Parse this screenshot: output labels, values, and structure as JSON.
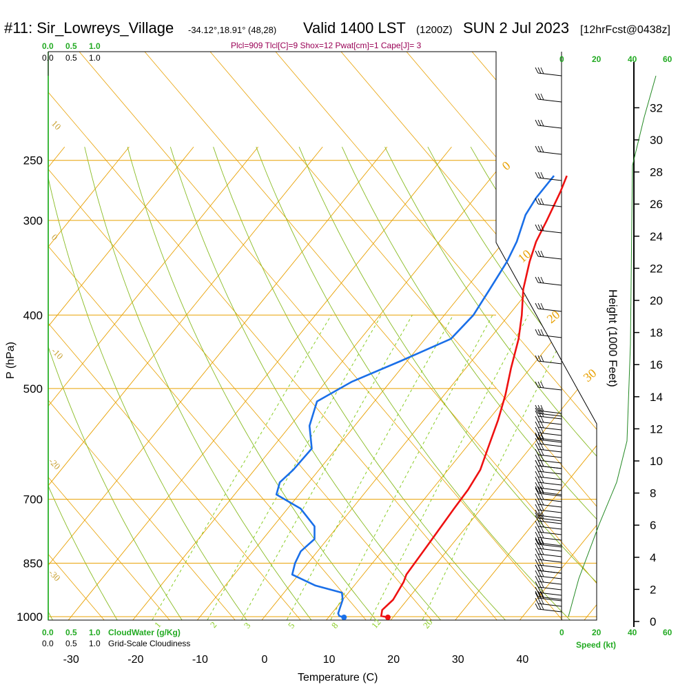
{
  "header": {
    "station": "#11: Sir_Lowreys_Village",
    "coords": "-34.12°,18.91° (48,28)",
    "valid": "Valid 1400 LST",
    "utc": "(1200Z)",
    "date": "SUN 2 Jul 2023",
    "forecast": "[12hrFcst@0438z]",
    "indices": "Plcl=909 Tlcl[C]=9 Shox=12 Pwat[cm]=1 Cape[J]= 3"
  },
  "colors": {
    "temperature": "#ee1111",
    "dewpoint": "#1a6fe8",
    "isotherm": "#e8a000",
    "dry_adiabat": "#88bb22",
    "mixing_ratio": "#88cc22",
    "cloud_scale": "#22aa22",
    "height_curve": "#228822"
  },
  "legends": {
    "cloudwater_scale_top": [
      "0.0",
      "0.5",
      "1.0"
    ],
    "cloudiness_scale_top": [
      "0.0",
      "0.5",
      "1.0"
    ],
    "cloudwater_scale_bottom": [
      "0.0",
      "0.5",
      "1.0"
    ],
    "cloudwater_label": "CloudWater (g/Kg)",
    "cloudiness_scale_bottom": [
      "0.0",
      "0.5",
      "1.0"
    ],
    "cloudiness_label": "Grid-Scale Cloudiness",
    "speed_ticks": [
      "0",
      "20",
      "40",
      "60"
    ],
    "speed_label": "Speed (kt)"
  },
  "chart_data": {
    "type": "line",
    "title": "#11: Sir_Lowreys_Village",
    "xlabel": "Temperature (C)",
    "ylabel": "P (hPa)",
    "y2label": "Height (1000 Feet)",
    "xlim": [
      -35,
      45
    ],
    "ylim": [
      1025,
      250
    ],
    "y_scale": "log",
    "x_ticks": [
      "-30",
      "-20",
      "-10",
      "0",
      "10",
      "20",
      "30",
      "40"
    ],
    "pressure_levels": [
      "250",
      "300",
      "400",
      "500",
      "700",
      "850",
      "1000"
    ],
    "height_ticks": [
      "0",
      "2",
      "4",
      "6",
      "8",
      "10",
      "12",
      "14",
      "16",
      "18",
      "20",
      "22",
      "24",
      "26",
      "28",
      "30",
      "32"
    ],
    "isotherm_labels": [
      "0",
      "10",
      "20",
      "30"
    ],
    "dry_adiabat_labels": [
      "10",
      "0",
      "-10",
      "-20",
      "-30"
    ],
    "mixing_ratio_labels": [
      "1",
      "2",
      "3",
      "5",
      "8",
      "12",
      "20"
    ],
    "series": [
      {
        "name": "Temperature",
        "points": [
          [
            19.2,
            1002
          ],
          [
            18.0,
            998
          ],
          [
            17.4,
            980
          ],
          [
            17.8,
            950
          ],
          [
            17.2,
            900
          ],
          [
            16.7,
            880
          ],
          [
            16.3,
            800
          ],
          [
            15.8,
            720
          ],
          [
            15.6,
            680
          ],
          [
            15.0,
            640
          ],
          [
            13.5,
            600
          ],
          [
            11.5,
            550
          ],
          [
            9.5,
            510
          ],
          [
            7.0,
            470
          ],
          [
            4.5,
            430
          ],
          [
            2.0,
            400
          ],
          [
            -1.0,
            370
          ],
          [
            -3.5,
            340
          ],
          [
            -5.0,
            320
          ],
          [
            -6.0,
            300
          ],
          [
            -7.5,
            275
          ],
          [
            -8.5,
            262
          ]
        ]
      },
      {
        "name": "Dewpoint",
        "points": [
          [
            12.4,
            1002
          ],
          [
            11.5,
            998
          ],
          [
            11.0,
            990
          ],
          [
            10.0,
            950
          ],
          [
            9.0,
            930
          ],
          [
            4.0,
            910
          ],
          [
            -1.0,
            880
          ],
          [
            -2.0,
            850
          ],
          [
            -2.6,
            820
          ],
          [
            -2.0,
            790
          ],
          [
            -3.6,
            760
          ],
          [
            -8.0,
            720
          ],
          [
            -13.5,
            690
          ],
          [
            -14.5,
            665
          ],
          [
            -14.0,
            640
          ],
          [
            -13.8,
            600
          ],
          [
            -17.0,
            560
          ],
          [
            -18.9,
            520
          ],
          [
            -16.0,
            490
          ],
          [
            -11.0,
            460
          ],
          [
            -6.0,
            430
          ],
          [
            -5.5,
            400
          ],
          [
            -6.2,
            370
          ],
          [
            -7.0,
            340
          ],
          [
            -8.0,
            320
          ],
          [
            -10.0,
            295
          ],
          [
            -10.5,
            280
          ],
          [
            -10.5,
            262
          ]
        ]
      }
    ],
    "surface_markers": [
      {
        "name": "Temperature",
        "x": 19.2,
        "p": 1002
      },
      {
        "name": "Dewpoint",
        "x": 12.4,
        "p": 1002
      }
    ]
  }
}
